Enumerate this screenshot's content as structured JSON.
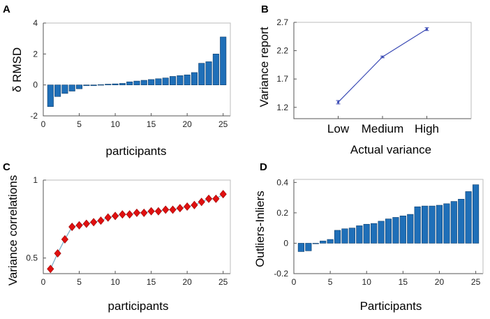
{
  "chart_data": [
    {
      "panel": "A",
      "type": "bar",
      "xlabel": "participants",
      "ylabel": "δ RMSD",
      "xlim": [
        0,
        26
      ],
      "ylim": [
        -2,
        4
      ],
      "xticks": [
        0,
        5,
        10,
        15,
        20,
        25
      ],
      "yticks": [
        -2,
        0,
        2,
        4
      ],
      "x": [
        1,
        2,
        3,
        4,
        5,
        6,
        7,
        8,
        9,
        10,
        11,
        12,
        13,
        14,
        15,
        16,
        17,
        18,
        19,
        20,
        21,
        22,
        23,
        24,
        25
      ],
      "values": [
        -1.4,
        -0.75,
        -0.55,
        -0.4,
        -0.25,
        -0.05,
        -0.05,
        0.02,
        0.05,
        0.07,
        0.1,
        0.2,
        0.25,
        0.3,
        0.35,
        0.4,
        0.45,
        0.55,
        0.6,
        0.65,
        0.8,
        1.4,
        1.5,
        2.0,
        3.1
      ],
      "color": "#1f6fb8"
    },
    {
      "panel": "B",
      "type": "line",
      "xlabel": "Actual variance",
      "ylabel": "Variance report",
      "categories": [
        "Low",
        "Medium",
        "High"
      ],
      "values": [
        1.29,
        2.09,
        2.58
      ],
      "errors": [
        0.03,
        0.015,
        0.025
      ],
      "ylim": [
        1.0,
        2.7
      ],
      "yticks": [
        1.2,
        1.7,
        2.2,
        2.7
      ],
      "color": "#3b4bb5"
    },
    {
      "panel": "C",
      "type": "scatter",
      "xlabel": "participants",
      "ylabel": "Variance correlations",
      "xlim": [
        0,
        26
      ],
      "ylim": [
        0.4,
        1.0
      ],
      "xticks": [
        0,
        5,
        10,
        15,
        20,
        25
      ],
      "yticks": [
        0.5,
        1
      ],
      "ytick_labels": [
        "0.5",
        "1"
      ],
      "x": [
        1,
        2,
        3,
        4,
        5,
        6,
        7,
        8,
        9,
        10,
        11,
        12,
        13,
        14,
        15,
        16,
        17,
        18,
        19,
        20,
        21,
        22,
        23,
        24,
        25
      ],
      "values": [
        0.43,
        0.53,
        0.62,
        0.7,
        0.71,
        0.72,
        0.73,
        0.74,
        0.76,
        0.77,
        0.78,
        0.78,
        0.79,
        0.79,
        0.8,
        0.8,
        0.81,
        0.81,
        0.82,
        0.83,
        0.84,
        0.86,
        0.88,
        0.88,
        0.91
      ],
      "color": "#e01010",
      "line_color": "#7fb0c8"
    },
    {
      "panel": "D",
      "type": "bar",
      "xlabel": "Participants",
      "ylabel": "Outliers-Inliers",
      "xlim": [
        0,
        26
      ],
      "ylim": [
        -0.2,
        0.42
      ],
      "xticks": [
        0,
        5,
        10,
        15,
        20,
        25
      ],
      "yticks": [
        -0.2,
        0,
        0.2,
        0.4
      ],
      "ytick_labels": [
        "-0.2",
        "0",
        "0.2",
        "0.4"
      ],
      "x": [
        1,
        2,
        3,
        4,
        5,
        6,
        7,
        8,
        9,
        10,
        11,
        12,
        13,
        14,
        15,
        16,
        17,
        18,
        19,
        20,
        21,
        22,
        23,
        24,
        25
      ],
      "values": [
        -0.055,
        -0.05,
        0.0,
        0.015,
        0.025,
        0.085,
        0.095,
        0.1,
        0.115,
        0.125,
        0.13,
        0.145,
        0.16,
        0.17,
        0.18,
        0.19,
        0.24,
        0.245,
        0.245,
        0.25,
        0.26,
        0.275,
        0.29,
        0.34,
        0.385
      ],
      "color": "#1f6fb8"
    }
  ]
}
